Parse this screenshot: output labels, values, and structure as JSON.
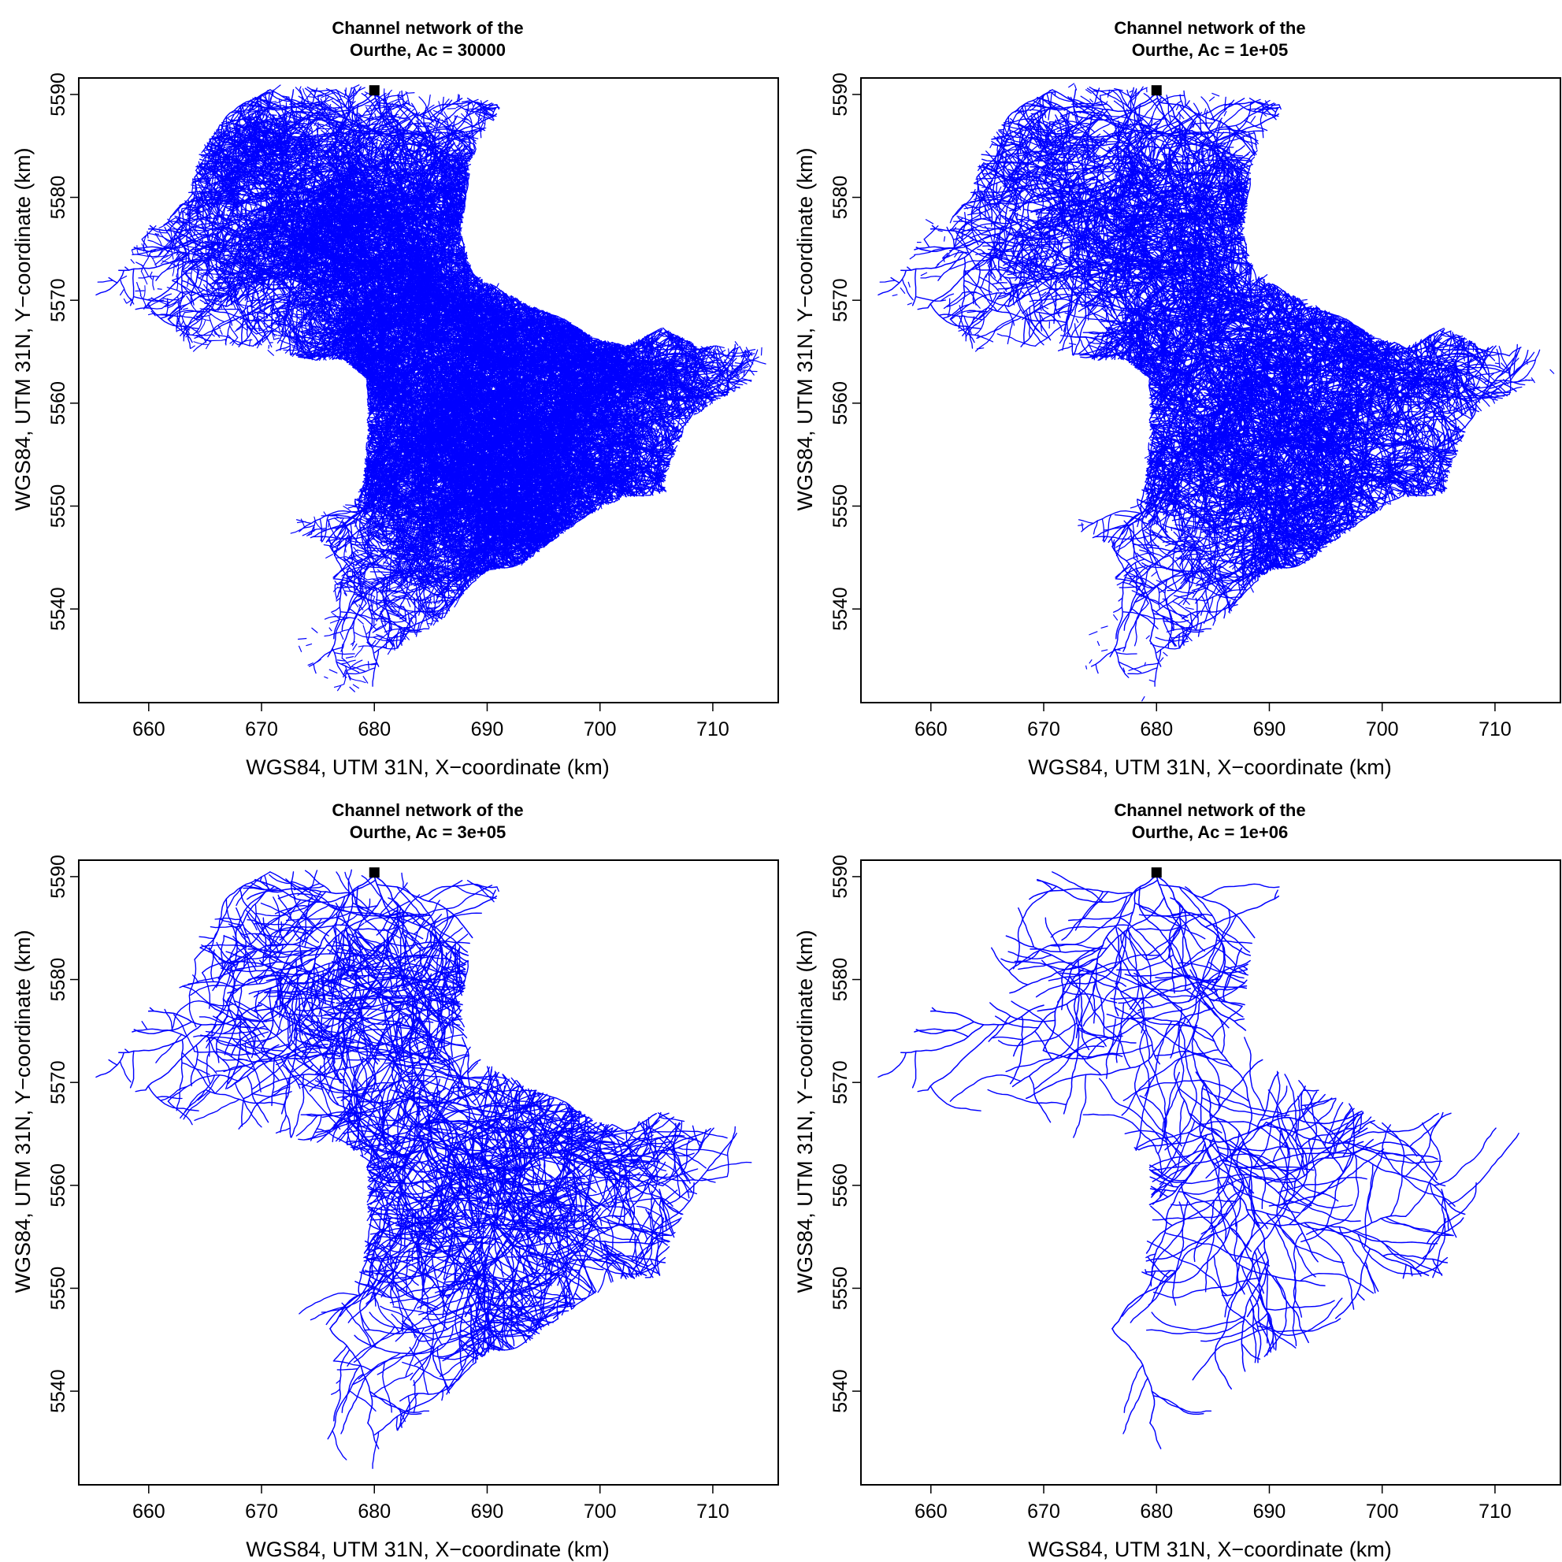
{
  "figure": {
    "colors": {
      "channel": "#0000ff",
      "frame": "#000000",
      "outlet": "#000000"
    }
  },
  "chart_data": [
    {
      "type": "map",
      "title_line1": "Channel network of the",
      "title_line2": "Ourthe, Ac = 30000",
      "threshold_Ac": 30000,
      "xlabel": "WGS84, UTM 31N, X−coordinate (km)",
      "ylabel": "WGS84, UTM 31N, Y−coordinate (km)",
      "xlim": [
        653.8,
        715.8
      ],
      "ylim": [
        5530.9,
        5591.6
      ],
      "xticks": [
        660,
        670,
        680,
        690,
        700,
        710
      ],
      "yticks": [
        5540,
        5550,
        5560,
        5570,
        5580,
        5590
      ],
      "outlet": {
        "x": 680.0,
        "y": 5590.4
      },
      "network_density": 1.0
    },
    {
      "type": "map",
      "title_line1": "Channel network of the",
      "title_line2": "Ourthe, Ac = 1e+05",
      "threshold_Ac": 100000,
      "xlabel": "WGS84, UTM 31N, X−coordinate (km)",
      "ylabel": "WGS84, UTM 31N, Y−coordinate (km)",
      "xlim": [
        653.8,
        715.8
      ],
      "ylim": [
        5530.9,
        5591.6
      ],
      "xticks": [
        660,
        670,
        680,
        690,
        700,
        710
      ],
      "yticks": [
        5540,
        5550,
        5560,
        5570,
        5580,
        5590
      ],
      "outlet": {
        "x": 680.0,
        "y": 5590.4
      },
      "network_density": 0.55
    },
    {
      "type": "map",
      "title_line1": "Channel network of the",
      "title_line2": "Ourthe, Ac = 3e+05",
      "threshold_Ac": 300000,
      "xlabel": "WGS84, UTM 31N, X−coordinate (km)",
      "ylabel": "WGS84, UTM 31N, Y−coordinate (km)",
      "xlim": [
        653.8,
        715.8
      ],
      "ylim": [
        5530.9,
        5591.6
      ],
      "xticks": [
        660,
        670,
        680,
        690,
        700,
        710
      ],
      "yticks": [
        5540,
        5550,
        5560,
        5570,
        5580,
        5590
      ],
      "outlet": {
        "x": 680.0,
        "y": 5590.4
      },
      "network_density": 0.32
    },
    {
      "type": "map",
      "title_line1": "Channel network of the",
      "title_line2": "Ourthe, Ac = 1e+06",
      "threshold_Ac": 1000000,
      "xlabel": "WGS84, UTM 31N, X−coordinate (km)",
      "ylabel": "WGS84, UTM 31N, Y−coordinate (km)",
      "xlim": [
        653.8,
        715.8
      ],
      "ylim": [
        5530.9,
        5591.6
      ],
      "xticks": [
        660,
        670,
        680,
        690,
        700,
        710
      ],
      "yticks": [
        5540,
        5550,
        5560,
        5570,
        5580,
        5590
      ],
      "outlet": {
        "x": 680.0,
        "y": 5590.4
      },
      "network_density": 0.17
    }
  ]
}
